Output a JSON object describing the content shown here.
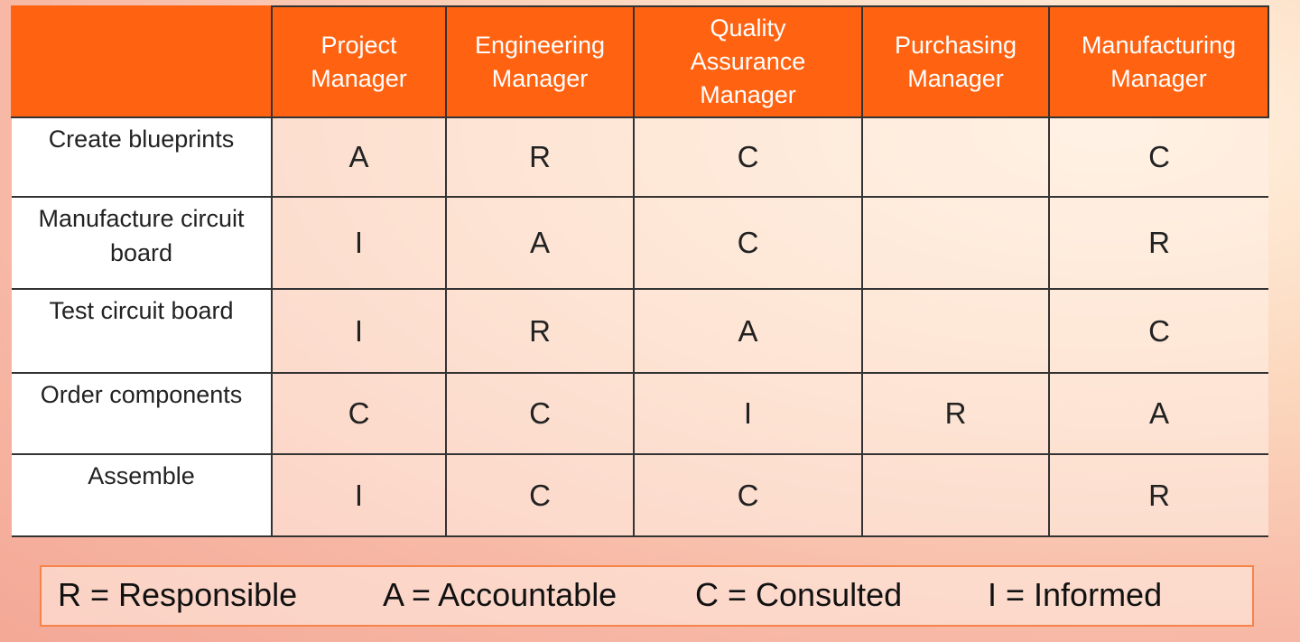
{
  "table": {
    "headers": [
      [
        "Project",
        "Manager"
      ],
      [
        "Engineering",
        "Manager"
      ],
      [
        "Quality",
        "Assurance",
        "Manager"
      ],
      [
        "Purchasing",
        "Manager"
      ],
      [
        "Manufacturing",
        "Manager"
      ]
    ],
    "rows": [
      {
        "label": [
          "Create blueprints"
        ],
        "cells": [
          "A",
          "R",
          "C",
          null,
          "C"
        ]
      },
      {
        "label": [
          "Manufacture circuit",
          "board"
        ],
        "cells": [
          "I",
          "A",
          "C",
          null,
          "R"
        ]
      },
      {
        "label": [
          "Test circuit board"
        ],
        "cells": [
          "I",
          "R",
          "A",
          null,
          "C"
        ]
      },
      {
        "label": [
          "Order components"
        ],
        "cells": [
          "C",
          "C",
          "I",
          "R",
          "A"
        ]
      },
      {
        "label": [
          "Assemble"
        ],
        "cells": [
          "I",
          "C",
          "C",
          null,
          "R"
        ]
      }
    ]
  },
  "legend": [
    "R = Responsible",
    "A = Accountable",
    "C = Consulted",
    "I = Informed"
  ]
}
